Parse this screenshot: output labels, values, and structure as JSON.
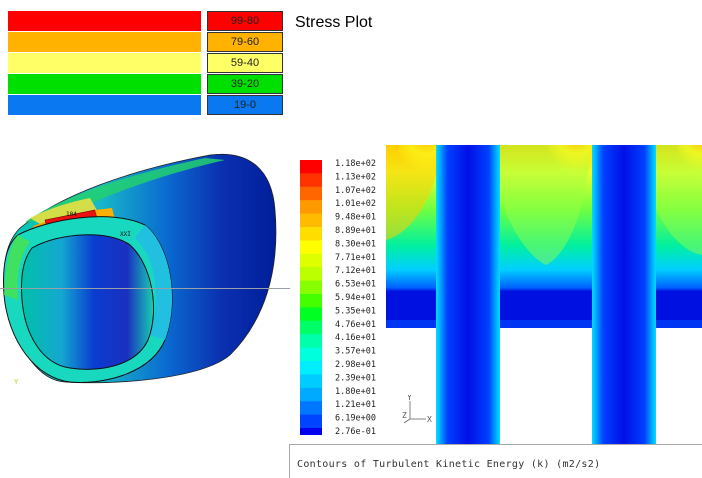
{
  "stress_legend": {
    "title": "Stress Plot",
    "bands": [
      {
        "label": "99-80",
        "color": "#ff0000"
      },
      {
        "label": "79-60",
        "color": "#ffb300"
      },
      {
        "label": "59-40",
        "color": "#ffff66"
      },
      {
        "label": "39-20",
        "color": "#00e000"
      },
      {
        "label": "19-0",
        "color": "#0a78f0"
      }
    ]
  },
  "fe_model": {
    "node_labels": [
      "104",
      "XXI"
    ],
    "axis_label": "Y"
  },
  "cfd_legend": {
    "levels": [
      {
        "label": "1.18e+02",
        "color": "#ff0000"
      },
      {
        "label": "1.13e+02",
        "color": "#ff3300"
      },
      {
        "label": "1.07e+02",
        "color": "#ff6600"
      },
      {
        "label": "1.01e+02",
        "color": "#ff9900"
      },
      {
        "label": "9.48e+01",
        "color": "#ffbb00"
      },
      {
        "label": "8.89e+01",
        "color": "#ffdd00"
      },
      {
        "label": "8.30e+01",
        "color": "#ffff00"
      },
      {
        "label": "7.71e+01",
        "color": "#ddff00"
      },
      {
        "label": "7.12e+01",
        "color": "#bbff00"
      },
      {
        "label": "6.53e+01",
        "color": "#88ff00"
      },
      {
        "label": "5.94e+01",
        "color": "#44ff00"
      },
      {
        "label": "5.35e+01",
        "color": "#00ff22"
      },
      {
        "label": "4.76e+01",
        "color": "#00ff66"
      },
      {
        "label": "4.16e+01",
        "color": "#00ffaa"
      },
      {
        "label": "3.57e+01",
        "color": "#00ffdd"
      },
      {
        "label": "2.98e+01",
        "color": "#00eeff"
      },
      {
        "label": "2.39e+01",
        "color": "#00ccff"
      },
      {
        "label": "1.80e+01",
        "color": "#00aaff"
      },
      {
        "label": "1.21e+01",
        "color": "#0077ff"
      },
      {
        "label": "6.19e+00",
        "color": "#0044ff"
      },
      {
        "label": "2.76e-01",
        "color": "#0000ee"
      }
    ],
    "axis_y": "Y",
    "axis_x": "X",
    "axis_z": "Z",
    "caption": "Contours of Turbulent Kinetic Energy (k) (m2/s2)"
  }
}
